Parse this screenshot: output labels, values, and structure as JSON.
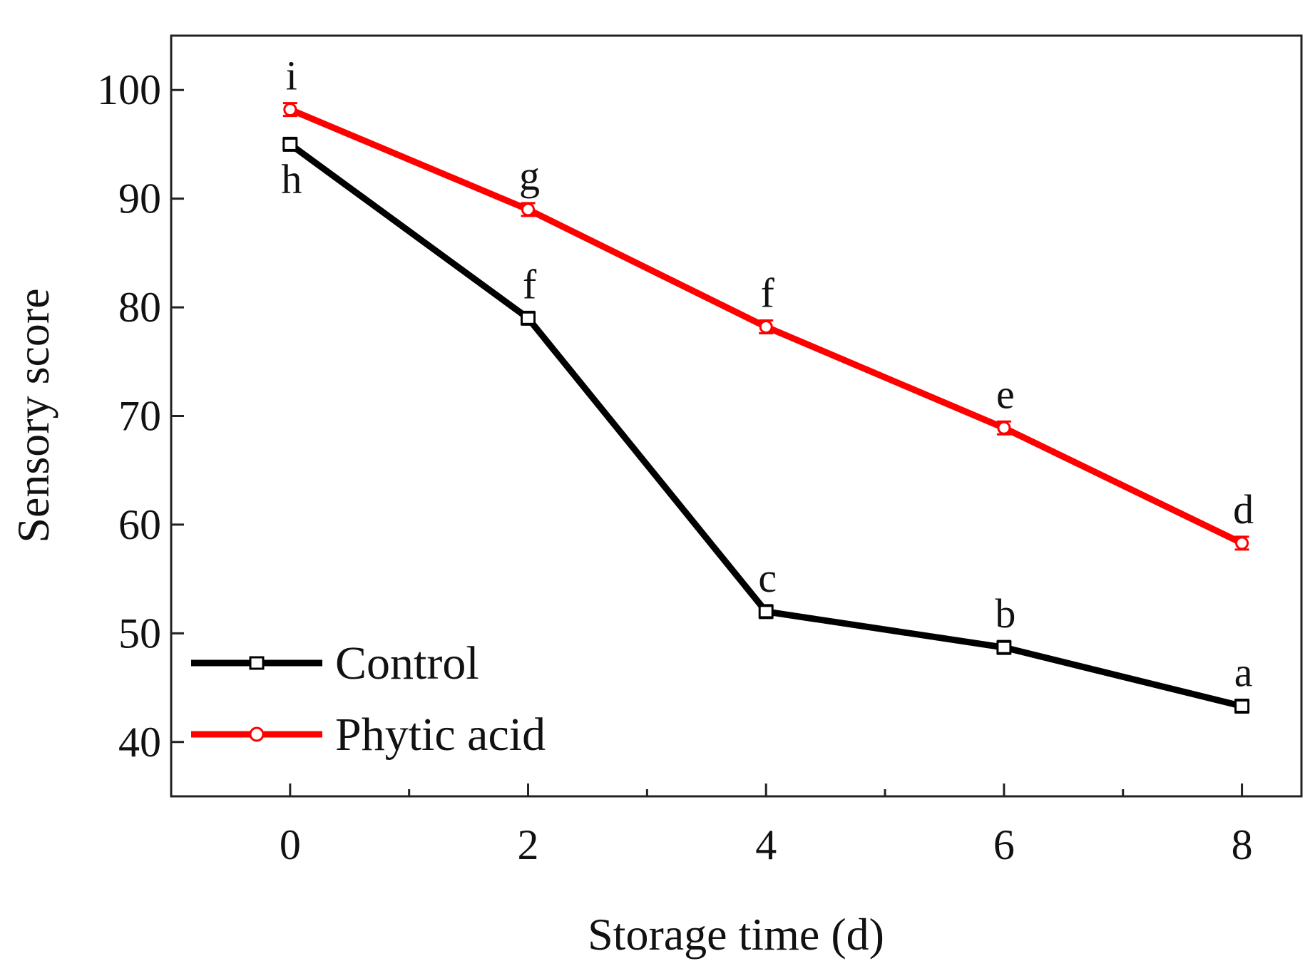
{
  "chart_data": {
    "type": "line",
    "title": "",
    "xlabel": "Storage time (d)",
    "ylabel": "Sensory score",
    "xlim": [
      -1,
      8.5
    ],
    "ylim": [
      35,
      105
    ],
    "x_ticks": [
      0,
      2,
      4,
      6,
      8
    ],
    "x_minor_ticks": [
      1,
      3,
      5,
      7
    ],
    "y_ticks": [
      40,
      50,
      60,
      70,
      80,
      90,
      100
    ],
    "grid": false,
    "legend_position": "bottom-left",
    "series": [
      {
        "name": "Control",
        "color": "#000000",
        "marker": "open-square",
        "x": [
          0,
          2,
          4,
          6,
          8
        ],
        "y": [
          95.0,
          79.0,
          52.0,
          48.7,
          43.3
        ],
        "point_labels": [
          "h",
          "f",
          "c",
          "b",
          "a"
        ]
      },
      {
        "name": "Phytic acid",
        "color": "#ff0000",
        "marker": "open-circle",
        "x": [
          0,
          2,
          4,
          6,
          8
        ],
        "y": [
          98.2,
          89.0,
          78.2,
          68.9,
          58.3
        ],
        "point_labels": [
          "i",
          "g",
          "f",
          "e",
          "d"
        ]
      }
    ]
  }
}
